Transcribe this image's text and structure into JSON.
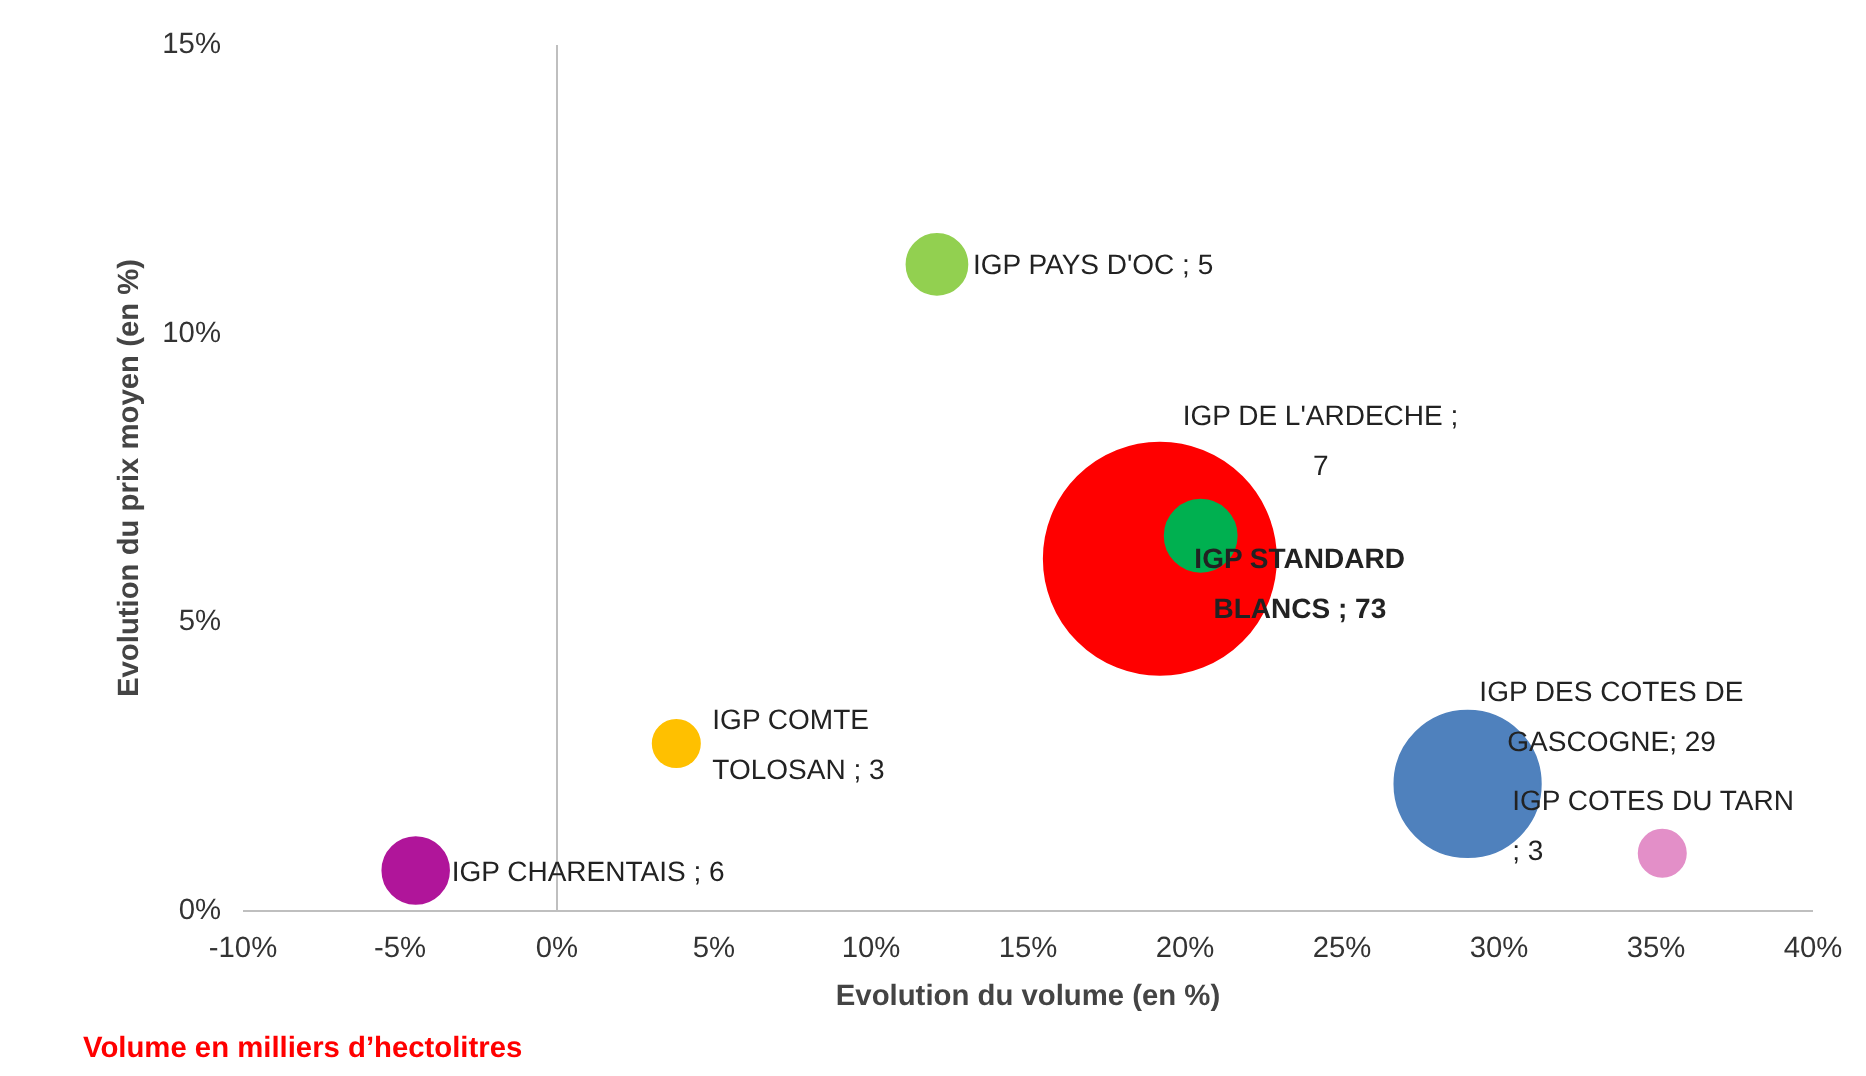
{
  "chart_data": {
    "type": "bubble",
    "xlabel": "Evolution du volume (en %)",
    "ylabel": "Evolution du prix moyen (en %)",
    "x": [
      12.1,
      20.5,
      19.2,
      29.0,
      35.2,
      3.8,
      -4.5
    ],
    "values": [
      11.2,
      6.5,
      6.1,
      2.2,
      1.0,
      2.9,
      0.7
    ],
    "sizes": [
      5,
      7,
      73,
      29,
      3,
      3,
      6
    ],
    "colors": [
      "#92d050",
      "#00b050",
      "#ff0000",
      "#4f81bd",
      "#e38fc8",
      "#ffc000",
      "#b0159a"
    ],
    "value_labels": [
      "IGP PAYS D'OC ; 5",
      "IGP DE L'ARDECHE ; 7",
      "IGP STANDARD BLANCS ; 73",
      "IGP DES COTES DE GASCOGNE; 29",
      "IGP COTES DU TARN ; 3",
      "IGP COMTE TOLOSAN ; 3",
      "IGP CHARENTAIS ; 6"
    ],
    "xlim": [
      -10,
      40
    ],
    "xticks": [
      {
        "value": -10,
        "label": "-10%"
      },
      {
        "value": -5,
        "label": "-5%"
      },
      {
        "value": 0,
        "label": "0%"
      },
      {
        "value": 5,
        "label": "5%"
      },
      {
        "value": 10,
        "label": "10%"
      },
      {
        "value": 15,
        "label": "15%"
      },
      {
        "value": 20,
        "label": "20%"
      },
      {
        "value": 25,
        "label": "25%"
      },
      {
        "value": 30,
        "label": "30%"
      },
      {
        "value": 35,
        "label": "35%"
      },
      {
        "value": 40,
        "label": "40%"
      }
    ],
    "ylim": [
      0,
      15
    ],
    "yticks": [
      {
        "value": 0,
        "label": "0%"
      },
      {
        "value": 5,
        "label": "5%"
      },
      {
        "value": 10,
        "label": "10%"
      },
      {
        "value": 15,
        "label": "15%"
      }
    ],
    "annotations": [
      "Volume en milliers d’hectolitres"
    ]
  }
}
